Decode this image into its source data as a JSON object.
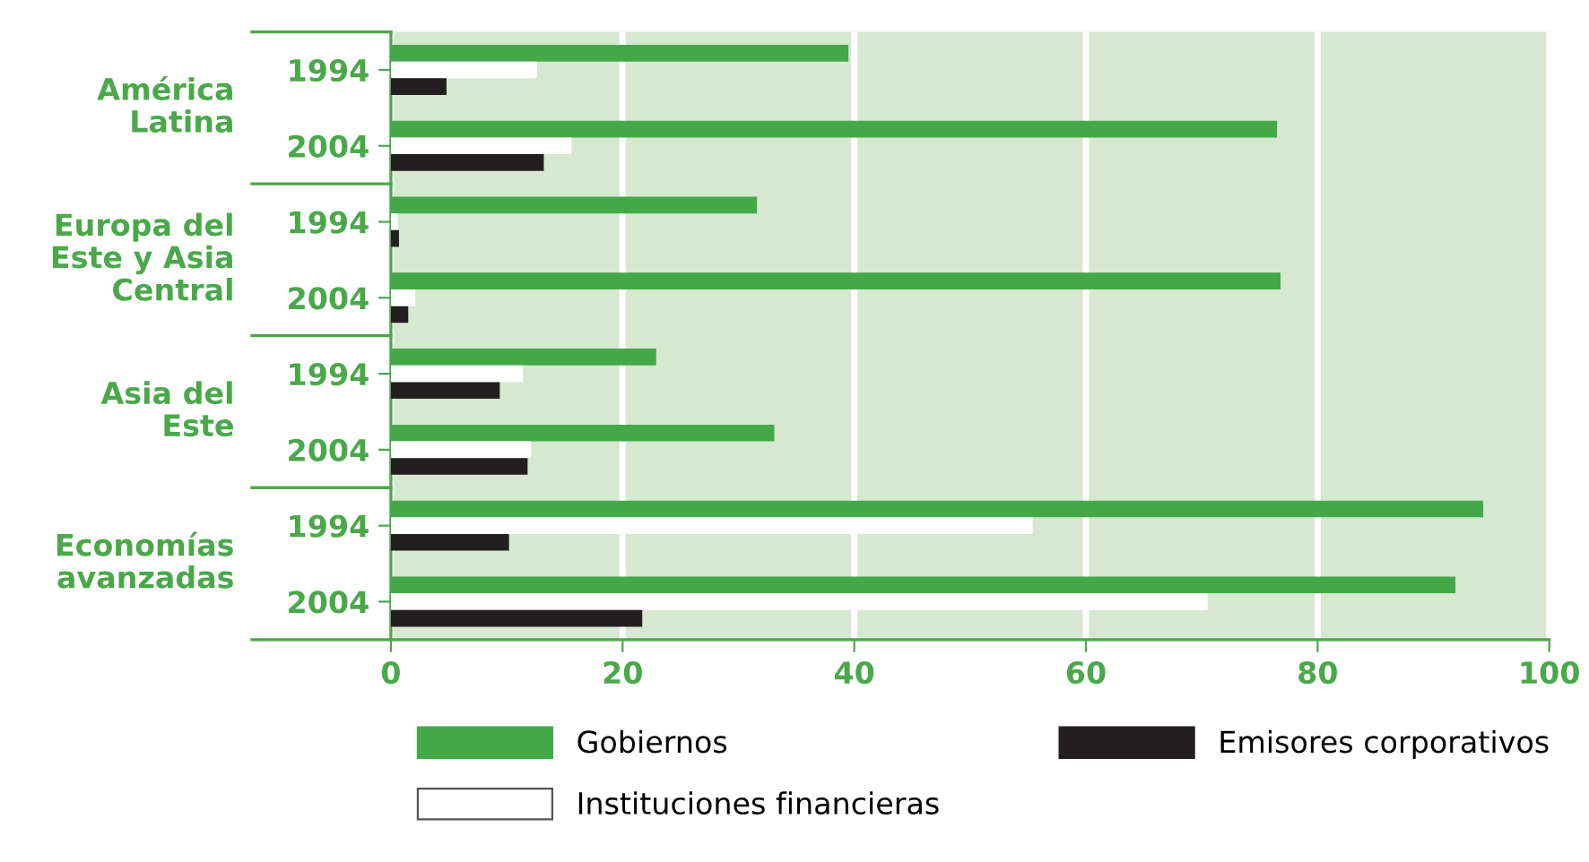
{
  "chart_data": {
    "type": "bar",
    "orientation": "horizontal",
    "categories": [
      "1994",
      "2004",
      "1994",
      "2004",
      "1994",
      "2004",
      "1994",
      "2004"
    ],
    "series": [
      {
        "name": "Gobiernos",
        "color": "#43a946",
        "values": [
          39.5,
          76.5,
          31.6,
          76.8,
          22.9,
          33.1,
          94.3,
          91.9
        ]
      },
      {
        "name": "Instituciones financieras",
        "color": "#ffffff",
        "values": [
          12.6,
          15.6,
          0.6,
          2.1,
          11.4,
          12.1,
          55.4,
          70.5
        ]
      },
      {
        "name": "Emisores corporativos",
        "color": "#231f20",
        "values": [
          4.8,
          13.2,
          0.7,
          1.5,
          9.4,
          11.8,
          10.2,
          21.7
        ]
      }
    ],
    "annotations": [
      "América\nLatina",
      "Europa del\nEste y Asia\nCentral",
      "Asia del\nEste",
      "Economías\navanzadas"
    ],
    "xlim": [
      0,
      100
    ],
    "xticks": [
      0,
      20,
      40,
      60,
      80,
      100
    ],
    "grid": "x",
    "legend": "bottom"
  }
}
